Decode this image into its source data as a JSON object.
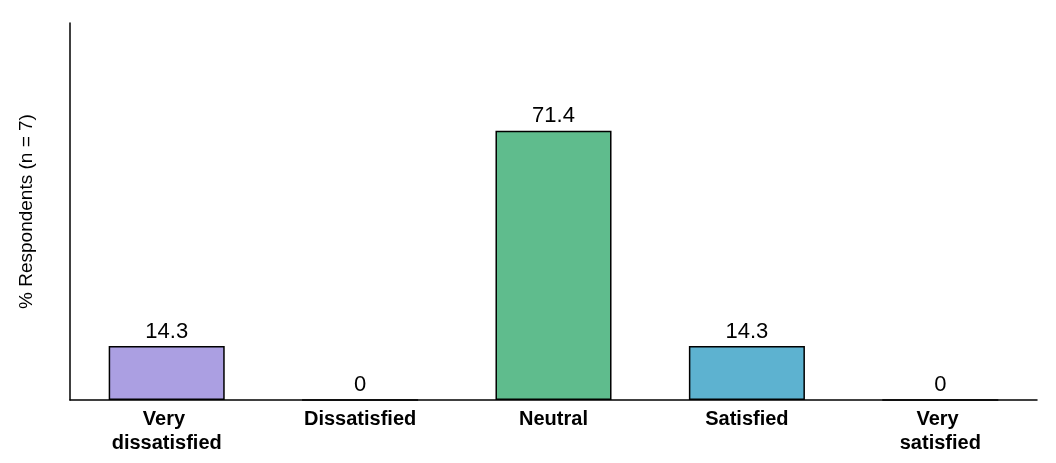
{
  "chart_data": {
    "type": "bar",
    "ylabel": "% Respondents (n = 7)",
    "categories": [
      "Very dissatisfied",
      "Dissatisfied",
      "Neutral",
      "Satisfied",
      "Very satisfied"
    ],
    "values": [
      14.3,
      0,
      71.4,
      14.3,
      0
    ],
    "colors": [
      "#ab9fe2",
      null,
      "#5fbc8d",
      "#5db2d0",
      null
    ],
    "data_labels": true
  }
}
